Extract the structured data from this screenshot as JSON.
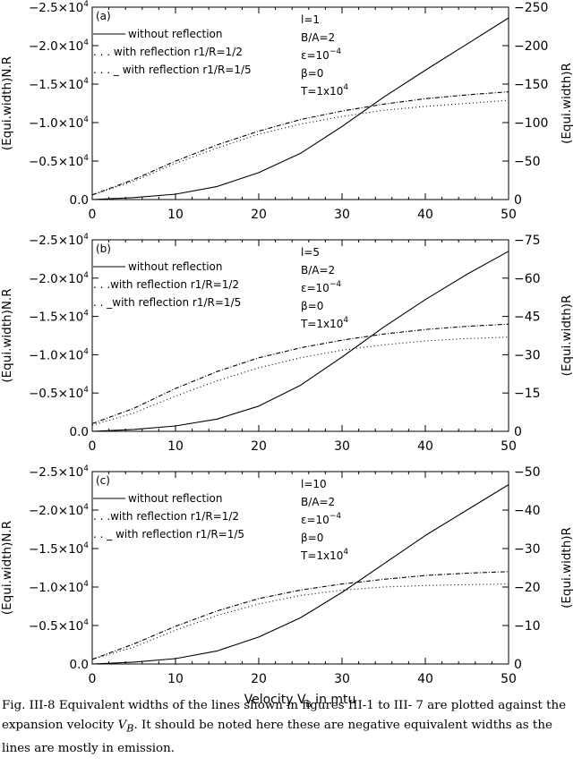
{
  "figure": {
    "caption_parts": [
      "Fig. III-8 Equivalent widths of the lines shown in figures III-1 to III- 7 are plotted against the expansion velocity ",
      "V",
      "B",
      ". It should be noted here these are negative equivalent widths as the lines are mostly in emission."
    ],
    "shared_xlabel_parts": [
      "Velocity V",
      "B",
      " in mtu"
    ]
  },
  "chart_data": [
    {
      "type": "line",
      "panel_label": "(a)",
      "xlim": [
        0,
        50
      ],
      "xticks": [
        0,
        10,
        20,
        30,
        40,
        50
      ],
      "ylabel_left": "(Equi.width)N.R",
      "ylabel_right": "(Equi.width)R",
      "left_axis": {
        "ylim": [
          0,
          -25000
        ],
        "ticks": [
          0,
          -5000,
          -10000,
          -15000,
          -20000,
          -25000
        ],
        "tick_labels": [
          {
            "mantissa": "0.0",
            "exp": ""
          },
          {
            "mantissa": "−0.5×10",
            "exp": "4"
          },
          {
            "mantissa": "−1.0×10",
            "exp": "4"
          },
          {
            "mantissa": "−1.5×10",
            "exp": "4"
          },
          {
            "mantissa": "−2.0×10",
            "exp": "4"
          },
          {
            "mantissa": "−2.5×10",
            "exp": "4"
          }
        ]
      },
      "right_axis": {
        "ylim": [
          0,
          -250
        ],
        "ticks": [
          0,
          -50,
          -100,
          -150,
          -200,
          -250
        ],
        "tick_labels": [
          "0",
          "−50",
          "−100",
          "−150",
          "−200",
          "−250"
        ]
      },
      "legend": [
        {
          "text": "without reflection",
          "dash": "solid"
        },
        {
          "text": ". . . with reflection r1/R=1/2",
          "dash": "dotted"
        },
        {
          "text": ". . . _ with reflection r1/R=1/5",
          "dash": "dashdot"
        }
      ],
      "params": [
        {
          "text": "l=1",
          "sup": ""
        },
        {
          "text": "B/A=2",
          "sup": ""
        },
        {
          "text": "ε=10",
          "sup": "−4"
        },
        {
          "text": "β=0",
          "sup": ""
        },
        {
          "text": "T=1x10",
          "sup": "4"
        }
      ],
      "series": [
        {
          "name": "without reflection",
          "axis": "left",
          "x": [
            0,
            5,
            10,
            15,
            20,
            25,
            30,
            35,
            40,
            45,
            50
          ],
          "y": [
            0,
            -250,
            -700,
            -1700,
            -3500,
            -6000,
            -9500,
            -13300,
            -16800,
            -20200,
            -23600
          ]
        },
        {
          "name": "with reflection r1/R=1/2",
          "axis": "left",
          "x": [
            0,
            5,
            10,
            15,
            20,
            25,
            30,
            35,
            40,
            45,
            50
          ],
          "y": [
            -600,
            -2400,
            -4700,
            -6700,
            -8500,
            -9800,
            -10800,
            -11600,
            -12100,
            -12500,
            -12900
          ]
        },
        {
          "name": "with reflection r1/R=1/5",
          "axis": "left",
          "x": [
            0,
            5,
            10,
            15,
            20,
            25,
            30,
            35,
            40,
            45,
            50
          ],
          "y": [
            -600,
            -2600,
            -5000,
            -7100,
            -8900,
            -10400,
            -11500,
            -12400,
            -13100,
            -13600,
            -14000
          ]
        }
      ]
    },
    {
      "type": "line",
      "panel_label": "(b)",
      "xlim": [
        0,
        50
      ],
      "xticks": [
        0,
        10,
        20,
        30,
        40,
        50
      ],
      "ylabel_left": "(Equi.width)N.R",
      "ylabel_right": "(Equi.width)R",
      "left_axis": {
        "ylim": [
          0,
          -25000
        ],
        "ticks": [
          0,
          -5000,
          -10000,
          -15000,
          -20000,
          -25000
        ],
        "tick_labels": [
          {
            "mantissa": "0.0",
            "exp": ""
          },
          {
            "mantissa": "−0.5×10",
            "exp": "4"
          },
          {
            "mantissa": "−1.0×10",
            "exp": "4"
          },
          {
            "mantissa": "−1.5×10",
            "exp": "4"
          },
          {
            "mantissa": "−2.0×10",
            "exp": "4"
          },
          {
            "mantissa": "−2.5×10",
            "exp": "4"
          }
        ]
      },
      "right_axis": {
        "ylim": [
          0,
          -75
        ],
        "ticks": [
          0,
          -15,
          -30,
          -45,
          -60,
          -75
        ],
        "tick_labels": [
          "0",
          "−15",
          "−30",
          "−45",
          "−60",
          "−75"
        ]
      },
      "legend": [
        {
          "text": "without reflection",
          "dash": "solid"
        },
        {
          "text": ". . .with reflection r1/R=1/2",
          "dash": "dotted"
        },
        {
          "text": ". . _with reflection r1/R=1/5",
          "dash": "dashdot"
        }
      ],
      "params": [
        {
          "text": "l=5",
          "sup": ""
        },
        {
          "text": "B/A=2",
          "sup": ""
        },
        {
          "text": "ε=10",
          "sup": "−4"
        },
        {
          "text": "β=0",
          "sup": ""
        },
        {
          "text": "T=1x10",
          "sup": "4"
        }
      ],
      "series": [
        {
          "name": "without reflection",
          "axis": "left",
          "x": [
            0,
            5,
            10,
            15,
            20,
            25,
            30,
            35,
            40,
            45,
            50
          ],
          "y": [
            0,
            -250,
            -700,
            -1600,
            -3300,
            -6000,
            -9700,
            -13600,
            -17200,
            -20500,
            -23500
          ]
        },
        {
          "name": "with reflection r1/R=1/2",
          "axis": "left",
          "x": [
            0,
            5,
            10,
            15,
            20,
            25,
            30,
            35,
            40,
            45,
            50
          ],
          "y": [
            -800,
            -2400,
            -4600,
            -6600,
            -8300,
            -9600,
            -10600,
            -11300,
            -11800,
            -12100,
            -12300
          ]
        },
        {
          "name": "with reflection r1/R=1/5",
          "axis": "left",
          "x": [
            0,
            5,
            10,
            15,
            20,
            25,
            30,
            35,
            40,
            45,
            50
          ],
          "y": [
            -1000,
            -3000,
            -5600,
            -7800,
            -9600,
            -10900,
            -11900,
            -12700,
            -13300,
            -13700,
            -14000
          ]
        }
      ]
    },
    {
      "type": "line",
      "panel_label": "(c)",
      "xlim": [
        0,
        50
      ],
      "xticks": [
        0,
        10,
        20,
        30,
        40,
        50
      ],
      "ylabel_left": "(Equi.width)N.R",
      "ylabel_right": "(Equi.width)R",
      "left_axis": {
        "ylim": [
          0,
          -25000
        ],
        "ticks": [
          0,
          -5000,
          -10000,
          -15000,
          -20000,
          -25000
        ],
        "tick_labels": [
          {
            "mantissa": "0.0",
            "exp": ""
          },
          {
            "mantissa": "−0.5×10",
            "exp": "4"
          },
          {
            "mantissa": "−1.0×10",
            "exp": "4"
          },
          {
            "mantissa": "−1.5×10",
            "exp": "4"
          },
          {
            "mantissa": "−2.0×10",
            "exp": "4"
          },
          {
            "mantissa": "−2.5×10",
            "exp": "4"
          }
        ]
      },
      "right_axis": {
        "ylim": [
          0,
          -50
        ],
        "ticks": [
          0,
          -10,
          -20,
          -30,
          -40,
          -50
        ],
        "tick_labels": [
          "0",
          "−10",
          "−20",
          "−30",
          "−40",
          "−50"
        ]
      },
      "legend": [
        {
          "text": "without reflection",
          "dash": "solid"
        },
        {
          "text": ". . .with reflection r1/R=1/2",
          "dash": "dotted"
        },
        {
          "text": ". . _ with reflection r1/R=1/5",
          "dash": "dashdot"
        }
      ],
      "params": [
        {
          "text": "l=10",
          "sup": ""
        },
        {
          "text": "B/A=2",
          "sup": ""
        },
        {
          "text": "ε=10",
          "sup": "−4"
        },
        {
          "text": "β=0",
          "sup": ""
        },
        {
          "text": "T=1x10",
          "sup": "4"
        }
      ],
      "series": [
        {
          "name": "without reflection",
          "axis": "left",
          "x": [
            0,
            5,
            10,
            15,
            20,
            25,
            30,
            35,
            40,
            45,
            50
          ],
          "y": [
            0,
            -250,
            -700,
            -1700,
            -3500,
            -6000,
            -9300,
            -13000,
            -16700,
            -20000,
            -23300
          ]
        },
        {
          "name": "with reflection r1/R=1/2",
          "axis": "left",
          "x": [
            0,
            5,
            10,
            15,
            20,
            25,
            30,
            35,
            40,
            45,
            50
          ],
          "y": [
            -600,
            -2200,
            -4400,
            -6300,
            -7800,
            -8900,
            -9600,
            -10000,
            -10200,
            -10300,
            -10400
          ]
        },
        {
          "name": "with reflection r1/R=1/5",
          "axis": "left",
          "x": [
            0,
            5,
            10,
            15,
            20,
            25,
            30,
            35,
            40,
            45,
            50
          ],
          "y": [
            -600,
            -2600,
            -4900,
            -6900,
            -8500,
            -9600,
            -10400,
            -11000,
            -11500,
            -11800,
            -12000
          ]
        }
      ]
    }
  ]
}
